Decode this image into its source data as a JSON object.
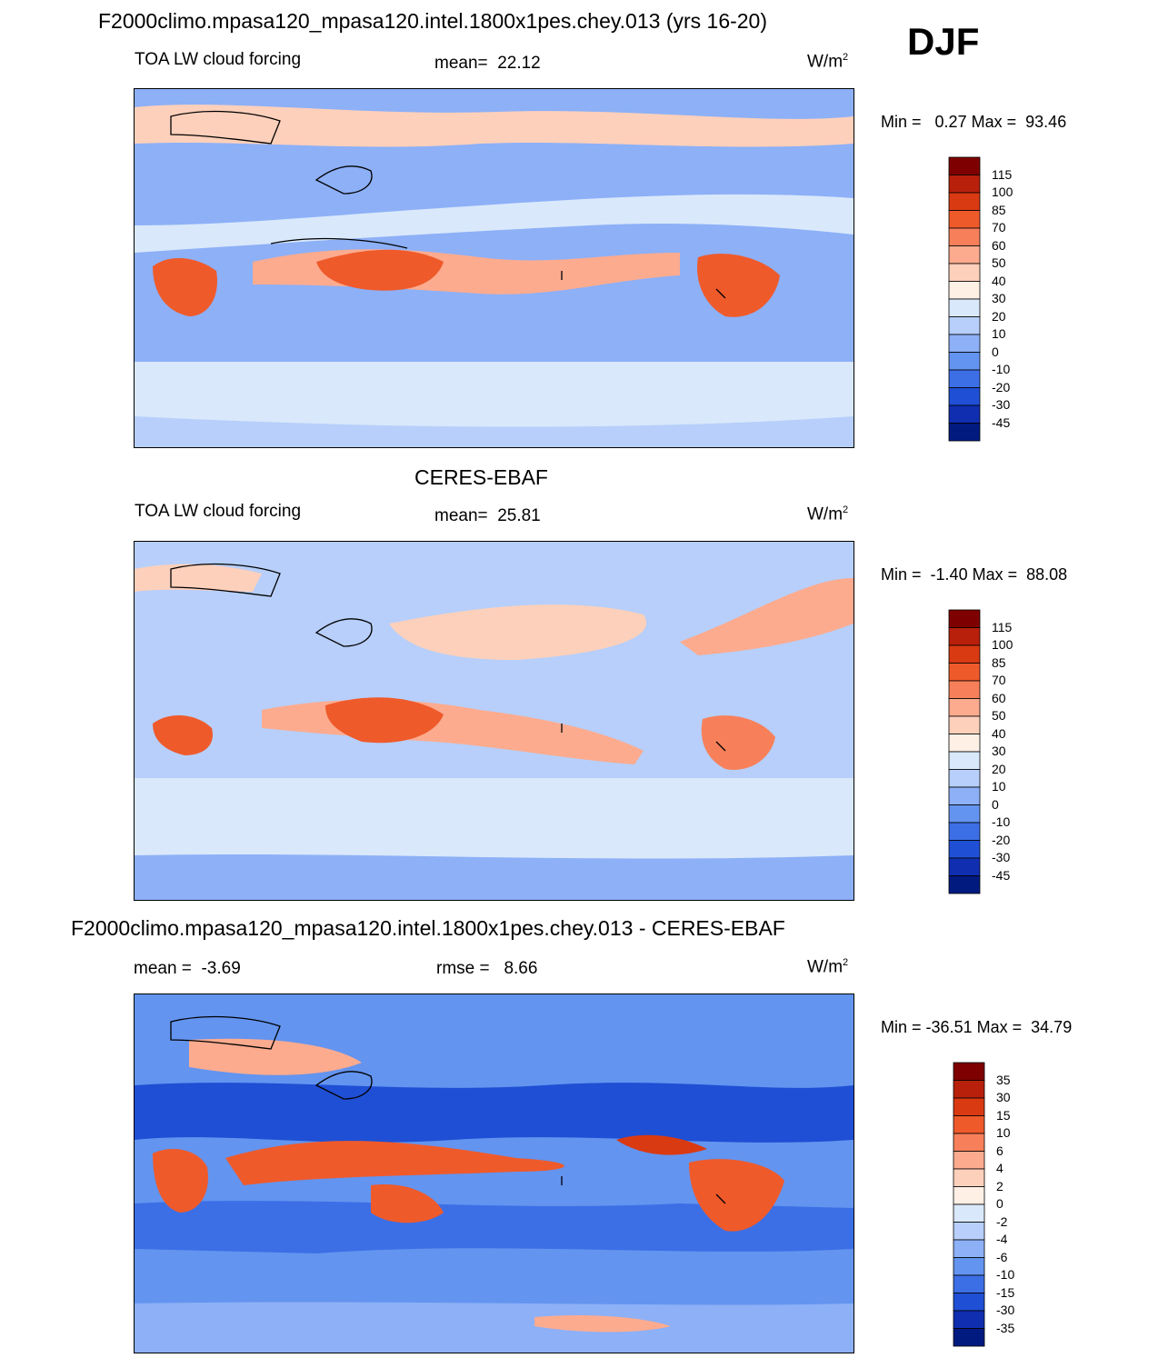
{
  "season": "DJF",
  "panels": [
    {
      "title": "F2000climo.mpasa120_mpasa120.intel.1800x1pes.chey.013 (yrs 16-20)",
      "variable": "TOA LW cloud forcing",
      "stat1_label": "mean=",
      "stat1_value": "22.12",
      "units_base": "W/m",
      "units_exp": "2",
      "min_label": "Min =",
      "min_value": "0.27",
      "max_label": "Max =",
      "max_value": "93.46"
    },
    {
      "title": "CERES-EBAF",
      "variable": "TOA LW cloud forcing",
      "stat1_label": "mean=",
      "stat1_value": "25.81",
      "units_base": "W/m",
      "units_exp": "2",
      "min_label": "Min =",
      "min_value": "-1.40",
      "max_label": "Max =",
      "max_value": "88.08"
    },
    {
      "title": "F2000climo.mpasa120_mpasa120.intel.1800x1pes.chey.013 - CERES-EBAF",
      "stat1_label": "mean =",
      "stat1_value": "-3.69",
      "stat2_label": "rmse =",
      "stat2_value": "8.66",
      "units_base": "W/m",
      "units_exp": "2",
      "min_label": "Min =",
      "min_value": "-36.51",
      "max_label": "Max =",
      "max_value": "34.79"
    }
  ],
  "chart_data": [
    {
      "type": "heatmap",
      "title": "F2000climo.mpasa120_mpasa120.intel.1800x1pes.chey.013 (yrs 16-20)",
      "variable": "TOA LW cloud forcing",
      "units": "W/m2",
      "mean": 22.12,
      "min": 0.27,
      "max": 93.46,
      "colorbar_levels": [
        "115",
        "100",
        "85",
        "70",
        "60",
        "50",
        "40",
        "30",
        "20",
        "10",
        "0",
        "-10",
        "-20",
        "-30",
        "-45"
      ],
      "colorbar_colors": [
        "#7f0000",
        "#b8200c",
        "#d93a12",
        "#ef5a2b",
        "#f7805a",
        "#fcab8f",
        "#fdd0bb",
        "#fff0e6",
        "#d9e8fb",
        "#b7cffa",
        "#8db0f7",
        "#6394ef",
        "#3c6fe6",
        "#1f4fd4",
        "#0f2eb0",
        "#001a80"
      ]
    },
    {
      "type": "heatmap",
      "title": "CERES-EBAF",
      "variable": "TOA LW cloud forcing",
      "units": "W/m2",
      "mean": 25.81,
      "min": -1.4,
      "max": 88.08,
      "colorbar_levels": [
        "115",
        "100",
        "85",
        "70",
        "60",
        "50",
        "40",
        "30",
        "20",
        "10",
        "0",
        "-10",
        "-20",
        "-30",
        "-45"
      ],
      "colorbar_colors": [
        "#7f0000",
        "#b8200c",
        "#d93a12",
        "#ef5a2b",
        "#f7805a",
        "#fcab8f",
        "#fdd0bb",
        "#fff0e6",
        "#d9e8fb",
        "#b7cffa",
        "#8db0f7",
        "#6394ef",
        "#3c6fe6",
        "#1f4fd4",
        "#0f2eb0",
        "#001a80"
      ]
    },
    {
      "type": "heatmap",
      "title": "F2000climo.mpasa120_mpasa120.intel.1800x1pes.chey.013 - CERES-EBAF",
      "units": "W/m2",
      "mean": -3.69,
      "rmse": 8.66,
      "min": -36.51,
      "max": 34.79,
      "colorbar_levels": [
        "35",
        "30",
        "15",
        "10",
        "6",
        "4",
        "2",
        "0",
        "-2",
        "-4",
        "-6",
        "-10",
        "-15",
        "-30",
        "-35"
      ],
      "colorbar_colors": [
        "#7f0000",
        "#b8200c",
        "#d93a12",
        "#ef5a2b",
        "#f7805a",
        "#fcab8f",
        "#fdd0bb",
        "#fff0e6",
        "#d9e8fb",
        "#b7cffa",
        "#8db0f7",
        "#6394ef",
        "#3c6fe6",
        "#1f4fd4",
        "#0f2eb0",
        "#001a80"
      ]
    }
  ]
}
